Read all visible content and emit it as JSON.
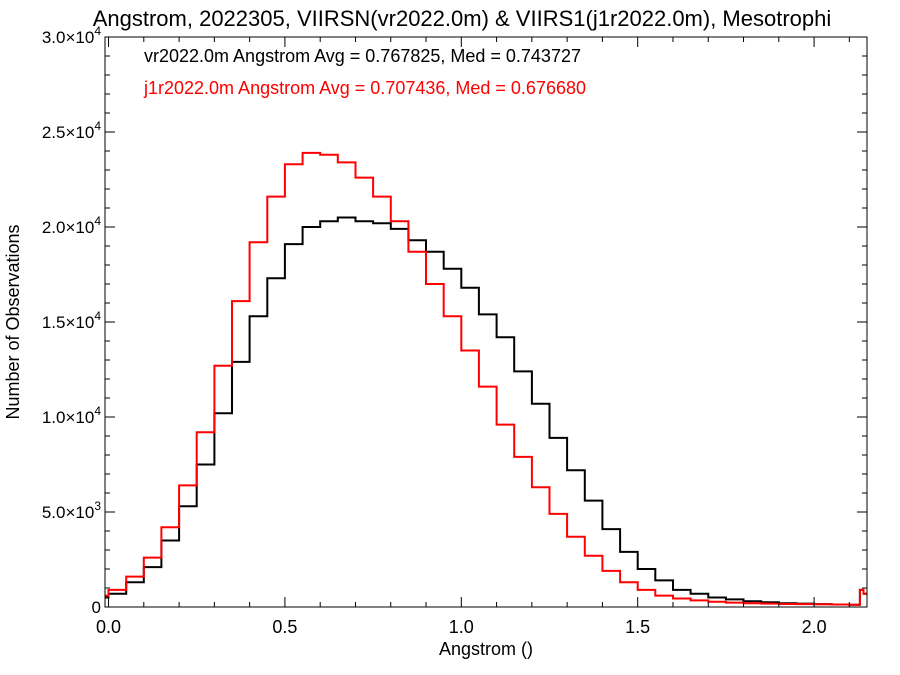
{
  "chart_data": {
    "type": "line",
    "title": "Angstrom, 2022305, VIIRSN(vr2022.0m) & VIIRS1(j1r2022.0m), Mesotrophi",
    "xlabel": "Angstrom ()",
    "ylabel": "Number of Observations",
    "xlim": [
      -0.01,
      2.15
    ],
    "ylim": [
      0,
      30000
    ],
    "x_ticks": [
      {
        "value": 0.0,
        "label": "0.0"
      },
      {
        "value": 0.5,
        "label": "0.5"
      },
      {
        "value": 1.0,
        "label": "1.0"
      },
      {
        "value": 1.5,
        "label": "1.5"
      },
      {
        "value": 2.0,
        "label": "2.0"
      }
    ],
    "y_ticks": [
      {
        "value": 0,
        "mantissa": "0",
        "exponent": ""
      },
      {
        "value": 5000,
        "mantissa": "5.0×10",
        "exponent": "3"
      },
      {
        "value": 10000,
        "mantissa": "1.0×10",
        "exponent": "4"
      },
      {
        "value": 15000,
        "mantissa": "1.5×10",
        "exponent": "4"
      },
      {
        "value": 20000,
        "mantissa": "2.0×10",
        "exponent": "4"
      },
      {
        "value": 25000,
        "mantissa": "2.5×10",
        "exponent": "4"
      },
      {
        "value": 30000,
        "mantissa": "3.0×10",
        "exponent": "4"
      }
    ],
    "grid": false,
    "legend_position": "top-left",
    "annotations": [
      {
        "text": "vr2022.0m Angstrom Avg = 0.767825, Med = 0.743727",
        "color": "#000000"
      },
      {
        "text": "j1r2022.0m Angstrom Avg = 0.707436, Med = 0.676680",
        "color": "#ff0000"
      }
    ],
    "series": [
      {
        "color": "#000000",
        "x": [
          -0.01,
          0.0,
          0.05,
          0.1,
          0.15,
          0.2,
          0.25,
          0.3,
          0.35,
          0.4,
          0.45,
          0.5,
          0.55,
          0.6,
          0.65,
          0.7,
          0.75,
          0.8,
          0.85,
          0.9,
          0.95,
          1.0,
          1.05,
          1.1,
          1.15,
          1.2,
          1.25,
          1.3,
          1.35,
          1.4,
          1.45,
          1.5,
          1.55,
          1.6,
          1.65,
          1.7,
          1.75,
          1.8,
          1.85,
          1.9,
          1.95,
          2.0,
          2.05,
          2.1,
          2.13,
          2.14
        ],
        "y": [
          500,
          700,
          1300,
          2100,
          3500,
          5300,
          7500,
          10200,
          12900,
          15300,
          17300,
          19100,
          20000,
          20300,
          20500,
          20300,
          20200,
          19900,
          19300,
          18700,
          17800,
          16800,
          15400,
          14200,
          12400,
          10700,
          8900,
          7200,
          5600,
          4100,
          2900,
          2000,
          1400,
          900,
          700,
          500,
          400,
          300,
          250,
          200,
          180,
          150,
          130,
          120,
          900,
          700
        ]
      },
      {
        "color": "#ff0000",
        "x": [
          -0.01,
          0.0,
          0.05,
          0.1,
          0.15,
          0.2,
          0.25,
          0.3,
          0.35,
          0.4,
          0.45,
          0.5,
          0.55,
          0.6,
          0.65,
          0.7,
          0.75,
          0.8,
          0.85,
          0.9,
          0.95,
          1.0,
          1.05,
          1.1,
          1.15,
          1.2,
          1.25,
          1.3,
          1.35,
          1.4,
          1.45,
          1.5,
          1.55,
          1.6,
          1.65,
          1.7,
          1.75,
          1.8,
          1.85,
          1.9,
          1.95,
          2.0,
          2.05,
          2.1,
          2.13,
          2.14
        ],
        "y": [
          600,
          900,
          1600,
          2600,
          4200,
          6400,
          9200,
          12700,
          16100,
          19200,
          21600,
          23300,
          23900,
          23800,
          23400,
          22600,
          21600,
          20300,
          18700,
          17000,
          15300,
          13500,
          11600,
          9600,
          7900,
          6300,
          4900,
          3700,
          2700,
          1900,
          1300,
          900,
          600,
          450,
          350,
          280,
          230,
          200,
          180,
          160,
          150,
          140,
          130,
          120,
          900,
          700
        ]
      }
    ]
  }
}
